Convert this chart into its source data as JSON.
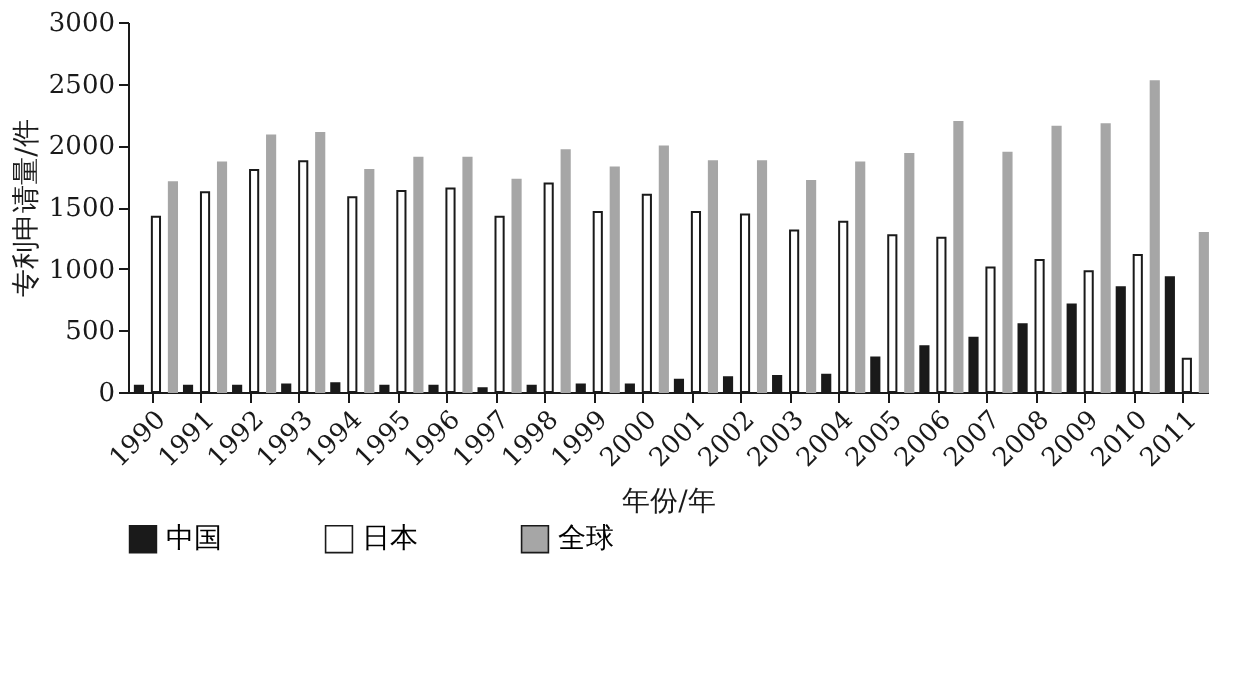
{
  "chart_data": {
    "type": "bar",
    "xlabel": "年份/年",
    "ylabel": "专利申请量/件",
    "categories": [
      "1990",
      "1991",
      "1992",
      "1993",
      "1994",
      "1995",
      "1996",
      "1997",
      "1998",
      "1999",
      "2000",
      "2001",
      "2002",
      "2003",
      "2004",
      "2005",
      "2006",
      "2007",
      "2008",
      "2009",
      "2010",
      "2011"
    ],
    "series": [
      {
        "name": "中国",
        "color": "#1a1a1a",
        "values": [
          50,
          50,
          50,
          60,
          70,
          50,
          50,
          30,
          50,
          60,
          60,
          100,
          120,
          130,
          140,
          280,
          370,
          440,
          550,
          710,
          850,
          930
        ]
      },
      {
        "name": "日本",
        "color": "#ffffff",
        "values": [
          1420,
          1620,
          1800,
          1870,
          1580,
          1630,
          1650,
          1420,
          1690,
          1460,
          1600,
          1460,
          1440,
          1310,
          1380,
          1270,
          1250,
          1010,
          1070,
          980,
          1110,
          270
        ]
      },
      {
        "name": "全球",
        "color": "#a6a6a6",
        "values": [
          1700,
          1860,
          2080,
          2100,
          1800,
          1900,
          1900,
          1720,
          1960,
          1820,
          1990,
          1870,
          1870,
          1710,
          1860,
          1930,
          2190,
          1940,
          2150,
          2170,
          2520,
          1290
        ]
      }
    ],
    "ylim": [
      0,
      3000
    ],
    "yticks": [
      0,
      500,
      1000,
      1500,
      2000,
      2500,
      3000
    ],
    "grid": false,
    "legend": "bottom"
  }
}
